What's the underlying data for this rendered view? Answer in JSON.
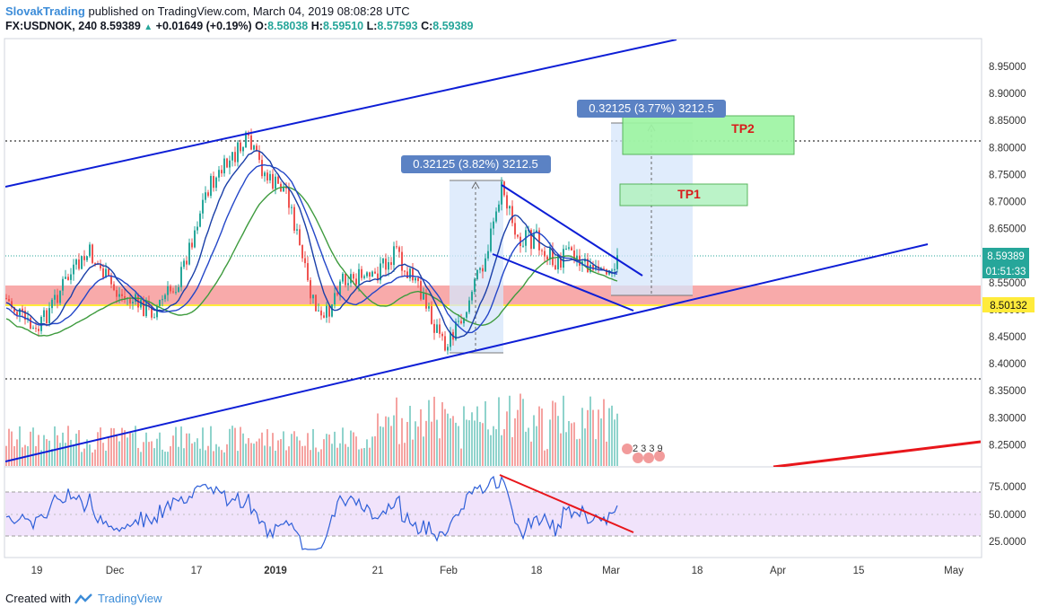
{
  "header": {
    "author": "SlovakTrading",
    "published_text": "published on TradingView.com, March 04, 2019 08:08:28 UTC",
    "symbol": "FX:USDNOK, 240",
    "last": "8.59389",
    "change": "+0.01649 (+0.19%)",
    "o_label": "O:",
    "o": "8.58038",
    "h_label": "H:",
    "h": "8.59510",
    "l_label": "L:",
    "l": "8.57593",
    "c_label": "C:",
    "c": "8.59389"
  },
  "price_axis": {
    "ticks": [
      "8.95000",
      "8.90000",
      "8.85000",
      "8.80000",
      "8.75000",
      "8.70000",
      "8.65000",
      "8.60000",
      "8.55000",
      "8.50000",
      "8.45000",
      "8.40000",
      "8.35000",
      "8.30000",
      "8.25000"
    ],
    "current_price_label": "8.59389",
    "countdown_label": "01:51:33",
    "support_label": "8.50132"
  },
  "rsi_axis": {
    "ticks": [
      "75.0000",
      "50.0000",
      "25.0000"
    ]
  },
  "time_axis": {
    "ticks": [
      "19",
      "Dec",
      "17",
      "2019",
      "21",
      "Feb",
      "18",
      "Mar",
      "18",
      "Apr",
      "15",
      "May"
    ]
  },
  "annotations": {
    "measure_1": "0.32125 (3.82%) 3212.5",
    "measure_2": "0.32125 (3.77%) 3212.5",
    "tp1": "TP1",
    "tp2": "TP2",
    "events_label": "2 3 3 9"
  },
  "colors": {
    "channel_line": "#0d1ed6",
    "sma_fast": "#1a3fa8",
    "sma_mid": "#2346c8",
    "sma_slow": "#3e9b3e",
    "up": "#26a69a",
    "down": "#ef5350",
    "zone_red": "#f7a1a1",
    "zone_green": "#9ef5a3",
    "rsi_band": "#f1e3fb",
    "rsi_line": "#2e5fd8",
    "trend_red": "#e8161b"
  },
  "footer": {
    "created_with": "Created with",
    "brand": "TradingView"
  }
}
